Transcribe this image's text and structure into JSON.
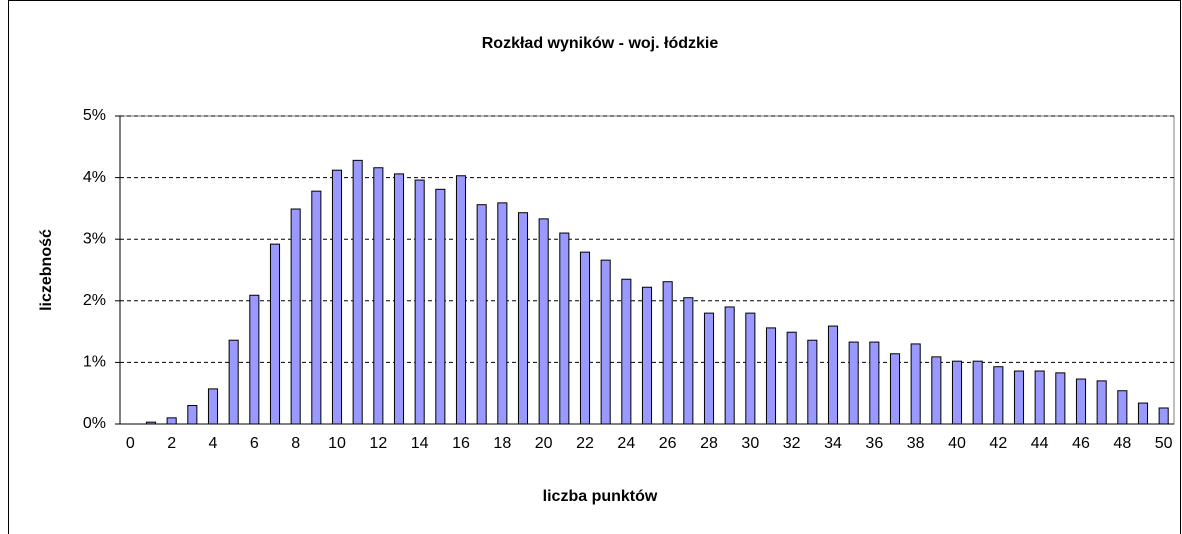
{
  "chart_data": {
    "type": "bar",
    "title": "Rozkład wyników - woj. łódzkie",
    "xlabel": "liczba punktów",
    "ylabel": "liczebność",
    "categories": [
      "0",
      null,
      "2",
      null,
      "4",
      null,
      "6",
      null,
      "8",
      null,
      "10",
      null,
      "12",
      null,
      "14",
      null,
      "16",
      null,
      "18",
      null,
      "20",
      null,
      "22",
      null,
      "24",
      null,
      "26",
      null,
      "28",
      null,
      "30",
      null,
      "32",
      null,
      "34",
      null,
      "36",
      null,
      "38",
      null,
      "40",
      null,
      "42",
      null,
      "44",
      null,
      "46",
      null,
      "48",
      null,
      "50"
    ],
    "values": [
      0,
      0.03,
      0.1,
      0.3,
      0.57,
      1.36,
      2.09,
      2.92,
      3.49,
      3.78,
      4.12,
      4.28,
      4.16,
      4.06,
      3.96,
      3.81,
      4.03,
      3.56,
      3.59,
      3.43,
      3.33,
      3.1,
      2.79,
      2.66,
      2.35,
      2.22,
      2.31,
      2.05,
      1.8,
      1.9,
      1.8,
      1.56,
      1.49,
      1.36,
      1.59,
      1.33,
      1.33,
      1.14,
      1.3,
      1.09,
      1.02,
      1.02,
      0.93,
      0.86,
      0.86,
      0.83,
      0.73,
      0.7,
      0.54,
      0.34,
      0.26
    ],
    "color": "#9999ff",
    "ylim": [
      0,
      5
    ],
    "yticks": [
      {
        "value": 0,
        "label": "0%"
      },
      {
        "value": 1,
        "label": "1%"
      },
      {
        "value": 2,
        "label": "2%"
      },
      {
        "value": 3,
        "label": "3%"
      },
      {
        "value": 4,
        "label": "4%"
      },
      {
        "value": 5,
        "label": "5%"
      }
    ],
    "grid": true
  }
}
